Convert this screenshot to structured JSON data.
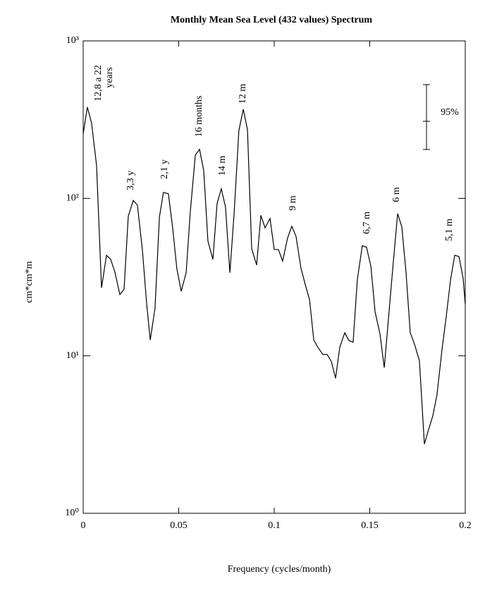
{
  "chart_data": {
    "type": "line",
    "title": "Monthly Mean Sea Level (432 values) Spectrum",
    "x_label": "Frequency  (cycles/month)",
    "y_label": "cm*cm*m",
    "x": [
      0,
      0.0022,
      0.0044,
      0.007,
      0.0096,
      0.0122,
      0.0144,
      0.0166,
      0.0192,
      0.0214,
      0.0236,
      0.0262,
      0.0284,
      0.031,
      0.0332,
      0.0351,
      0.0376,
      0.0399,
      0.042,
      0.0446,
      0.0469,
      0.049,
      0.0513,
      0.0539,
      0.0561,
      0.0587,
      0.0609,
      0.0631,
      0.0653,
      0.0679,
      0.0701,
      0.0723,
      0.0745,
      0.0768,
      0.079,
      0.0815,
      0.0838,
      0.086,
      0.0882,
      0.0908,
      0.093,
      0.0952,
      0.0978,
      0.1,
      0.1022,
      0.1044,
      0.107,
      0.1092,
      0.1114,
      0.114,
      0.1162,
      0.1185,
      0.1207,
      0.1229,
      0.1255,
      0.1277,
      0.1299,
      0.1321,
      0.1343,
      0.1369,
      0.1391,
      0.1413,
      0.1435,
      0.1461,
      0.1483,
      0.1506,
      0.1528,
      0.1554,
      0.1576,
      0.1598,
      0.162,
      0.1646,
      0.1668,
      0.169,
      0.1712,
      0.1734,
      0.176,
      0.1786,
      0.1808,
      0.183,
      0.1852,
      0.1878,
      0.19,
      0.1923,
      0.1945,
      0.1967,
      0.1989,
      0.2
    ],
    "series": [
      {
        "name": "spectrum",
        "color": "#000000",
        "values": [
          257,
          380,
          300,
          162,
          27,
          43.5,
          41,
          34,
          24.5,
          26.5,
          77,
          97,
          90.5,
          47,
          21.6,
          12.6,
          20,
          76,
          109,
          107,
          64,
          36,
          25.7,
          33.7,
          83,
          188,
          205,
          150,
          53.5,
          41,
          93,
          115,
          88,
          33.7,
          80,
          270,
          368,
          273,
          48,
          37.7,
          78,
          65,
          74.5,
          47.3,
          47.3,
          40,
          56,
          66.5,
          57.5,
          36,
          28.5,
          22.7,
          12.6,
          11.3,
          10.2,
          10.2,
          9.2,
          7.2,
          11.3,
          14,
          12.5,
          12.2,
          30.4,
          50,
          49,
          37,
          19,
          13.7,
          8.4,
          17.2,
          35.4,
          80,
          65.8,
          33.7,
          14,
          11.9,
          9.3,
          2.75,
          3.4,
          4.15,
          5.65,
          10.9,
          17.6,
          30.4,
          43.5,
          42.7,
          31,
          21.2
        ]
      }
    ],
    "xlim": [
      0,
      0.2
    ],
    "xticks": [
      0,
      0.05,
      0.1,
      0.15,
      0.2
    ],
    "ylim": [
      1,
      1000
    ],
    "log_y": true,
    "yticks": [
      {
        "value": 1,
        "label": "10⁰"
      },
      {
        "value": 10,
        "label": "10¹"
      },
      {
        "value": 100,
        "label": "10²"
      },
      {
        "value": 1000,
        "label": "10³"
      }
    ],
    "annotations": [
      "12,8 a 22",
      "years",
      "3,3 y",
      "2,1 y",
      "16  months",
      "14 m",
      "12 m",
      "9 m",
      "6,7 m",
      "6 m",
      "5,1 m",
      "95%"
    ]
  }
}
